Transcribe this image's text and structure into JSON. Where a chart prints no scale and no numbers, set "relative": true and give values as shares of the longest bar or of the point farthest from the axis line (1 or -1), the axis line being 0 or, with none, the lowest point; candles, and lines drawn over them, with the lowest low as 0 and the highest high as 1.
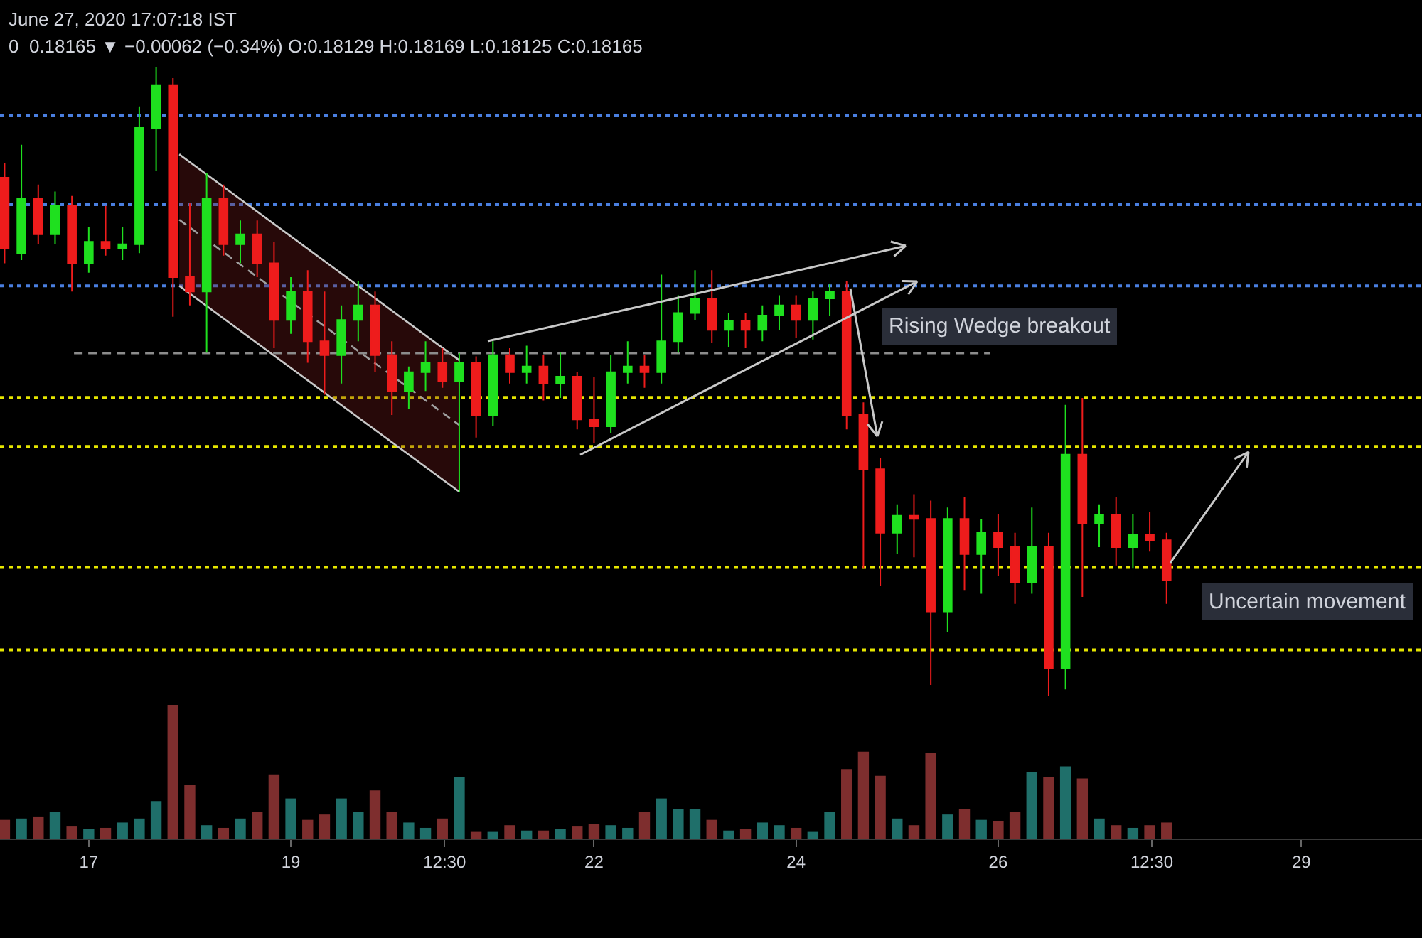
{
  "chart_data": [
    {
      "type": "candlestick",
      "title": "June 27, 2020 17:07:18 IST",
      "subtitle": "0  0.18165 ▼ −0.00062 (−0.34%) O:0.18129 H:0.18169 L:0.18125 C:0.18165",
      "relative": true,
      "tick_labels": false,
      "xlim": [
        "2020-06-16T02:55",
        "2020-06-30T04:40"
      ],
      "series": [
        {
          "type": "line",
          "color": "#a0a0a0",
          "line_style": "dashed",
          "x": [
            "2020-06-17T21:30",
            "2020-06-20T16:00"
          ],
          "values": [
            0.757,
            0.431
          ],
          "lower": [
            0.652,
            0.325
          ],
          "upper": [
            0.861,
            0.534
          ]
        },
        {
          "type": "line",
          "color": "#c8c8c8",
          "x": [
            "2020-06-17T21:30",
            "2020-06-20T16:00"
          ],
          "values": [
            0.861,
            0.534
          ]
        },
        {
          "type": "line",
          "color": "#c8c8c8",
          "x": [
            "2020-06-17T21:30",
            "2020-06-20T16:00"
          ],
          "values": [
            0.652,
            0.325
          ]
        },
        {
          "type": "line",
          "color": "#8c8c8c",
          "line_style": "dashed",
          "x": [
            "2020-06-16T20:30",
            "2020-06-25T22:00"
          ],
          "values": [
            0.545,
            0.545
          ]
        },
        {
          "color": "#1fe01f",
          "x": [
            "2020-06-16T08:00",
            "2020-06-16T16:00",
            "2020-06-17T00:00",
            "2020-06-17T08:00",
            "2020-06-17T12:00",
            "2020-06-17T16:00",
            "2020-06-18T04:00",
            "2020-06-18T12:00",
            "2020-06-19T00:00",
            "2020-06-19T12:00",
            "2020-06-19T16:00",
            "2020-06-20T04:00",
            "2020-06-20T08:00",
            "2020-06-20T16:00",
            "2020-06-21T00:00",
            "2020-06-21T08:00",
            "2020-06-21T16:00",
            "2020-06-22T04:00",
            "2020-06-22T08:00",
            "2020-06-22T16:00",
            "2020-06-22T20:00",
            "2020-06-23T00:00",
            "2020-06-23T08:00",
            "2020-06-23T16:00",
            "2020-06-23T20:00",
            "2020-06-24T04:00",
            "2020-06-24T08:00",
            "2020-06-25T00:00",
            "2020-06-25T12:00",
            "2020-06-25T20:00",
            "2020-06-26T08:00",
            "2020-06-26T16:00",
            "2020-06-27T00:00",
            "2020-06-27T08:00"
          ],
          "ohlc": [
            [
              0.704,
              0.876,
              0.693,
              0.79
            ],
            [
              0.734,
              0.802,
              0.718,
              0.779
            ],
            [
              0.688,
              0.745,
              0.673,
              0.722
            ],
            [
              0.711,
              0.745,
              0.693,
              0.718
            ],
            [
              0.718,
              0.937,
              0.704,
              0.903
            ],
            [
              0.903,
              1.0,
              0.835,
              0.971
            ],
            [
              0.643,
              0.831,
              0.546,
              0.79
            ],
            [
              0.718,
              0.756,
              0.688,
              0.734
            ],
            [
              0.598,
              0.666,
              0.576,
              0.643
            ],
            [
              0.542,
              0.621,
              0.497,
              0.598
            ],
            [
              0.598,
              0.659,
              0.564,
              0.621
            ],
            [
              0.485,
              0.524,
              0.456,
              0.515
            ],
            [
              0.515,
              0.564,
              0.485,
              0.53
            ],
            [
              0.501,
              0.545,
              0.325,
              0.53
            ],
            [
              0.447,
              0.564,
              0.429,
              0.542
            ],
            [
              0.515,
              0.557,
              0.497,
              0.524
            ],
            [
              0.497,
              0.546,
              0.474,
              0.508
            ],
            [
              0.429,
              0.542,
              0.418,
              0.515
            ],
            [
              0.515,
              0.564,
              0.497,
              0.524
            ],
            [
              0.515,
              0.67,
              0.497,
              0.564
            ],
            [
              0.564,
              0.637,
              0.546,
              0.609
            ],
            [
              0.609,
              0.677,
              0.598,
              0.632
            ],
            [
              0.582,
              0.609,
              0.555,
              0.596
            ],
            [
              0.582,
              0.621,
              0.564,
              0.605
            ],
            [
              0.605,
              0.637,
              0.582,
              0.621
            ],
            [
              0.598,
              0.643,
              0.567,
              0.632
            ],
            [
              0.632,
              0.655,
              0.605,
              0.643
            ],
            [
              0.26,
              0.305,
              0.226,
              0.287
            ],
            [
              0.135,
              0.3,
              0.102,
              0.282
            ],
            [
              0.226,
              0.282,
              0.163,
              0.26
            ],
            [
              0.181,
              0.3,
              0.163,
              0.237
            ],
            [
              0.045,
              0.463,
              0.011,
              0.384
            ],
            [
              0.275,
              0.305,
              0.237,
              0.289
            ],
            [
              0.237,
              0.289,
              0.203,
              0.257
            ]
          ]
        },
        {
          "color": "#ee1c1c",
          "x": [
            "2020-06-16T04:00",
            "2020-06-16T12:00",
            "2020-06-16T20:00",
            "2020-06-17T04:00",
            "2020-06-17T20:00",
            "2020-06-18T00:00",
            "2020-06-18T08:00",
            "2020-06-18T16:00",
            "2020-06-18T20:00",
            "2020-06-19T04:00",
            "2020-06-19T08:00",
            "2020-06-19T20:00",
            "2020-06-20T00:00",
            "2020-06-20T12:00",
            "2020-06-20T20:00",
            "2020-06-21T04:00",
            "2020-06-21T12:00",
            "2020-06-21T20:00",
            "2020-06-22T00:00",
            "2020-06-22T12:00",
            "2020-06-23T04:00",
            "2020-06-23T12:00",
            "2020-06-24T00:00",
            "2020-06-24T12:00",
            "2020-06-24T16:00",
            "2020-06-24T20:00",
            "2020-06-25T04:00",
            "2020-06-25T08:00",
            "2020-06-25T16:00",
            "2020-06-26T00:00",
            "2020-06-26T04:00",
            "2020-06-26T12:00",
            "2020-06-26T20:00",
            "2020-06-27T04:00",
            "2020-06-27T12:00",
            "2020-06-27T16:00"
          ],
          "ohlc": [
            [
              0.824,
              0.847,
              0.688,
              0.711
            ],
            [
              0.79,
              0.813,
              0.718,
              0.734
            ],
            [
              0.779,
              0.795,
              0.643,
              0.688
            ],
            [
              0.722,
              0.779,
              0.7,
              0.711
            ],
            [
              0.971,
              0.982,
              0.603,
              0.666
            ],
            [
              0.666,
              0.783,
              0.621,
              0.643
            ],
            [
              0.79,
              0.813,
              0.7,
              0.718
            ],
            [
              0.734,
              0.756,
              0.666,
              0.688
            ],
            [
              0.688,
              0.722,
              0.553,
              0.598
            ],
            [
              0.643,
              0.677,
              0.53,
              0.564
            ],
            [
              0.564,
              0.643,
              0.479,
              0.542
            ],
            [
              0.621,
              0.643,
              0.515,
              0.542
            ],
            [
              0.542,
              0.564,
              0.447,
              0.485
            ],
            [
              0.53,
              0.553,
              0.49,
              0.501
            ],
            [
              0.53,
              0.54,
              0.411,
              0.447
            ],
            [
              0.542,
              0.553,
              0.497,
              0.515
            ],
            [
              0.524,
              0.542,
              0.47,
              0.497
            ],
            [
              0.508,
              0.515,
              0.424,
              0.44
            ],
            [
              0.44,
              0.508,
              0.402,
              0.429
            ],
            [
              0.524,
              0.542,
              0.49,
              0.515
            ],
            [
              0.632,
              0.677,
              0.561,
              0.582
            ],
            [
              0.596,
              0.609,
              0.553,
              0.582
            ],
            [
              0.621,
              0.637,
              0.569,
              0.598
            ],
            [
              0.643,
              0.659,
              0.424,
              0.447
            ],
            [
              0.447,
              0.467,
              0.203,
              0.361
            ],
            [
              0.361,
              0.379,
              0.176,
              0.26
            ],
            [
              0.287,
              0.321,
              0.221,
              0.282
            ],
            [
              0.282,
              0.311,
              0.018,
              0.135
            ],
            [
              0.282,
              0.316,
              0.169,
              0.226
            ],
            [
              0.26,
              0.289,
              0.192,
              0.237
            ],
            [
              0.237,
              0.26,
              0.147,
              0.181
            ],
            [
              0.237,
              0.26,
              0.0,
              0.045
            ],
            [
              0.384,
              0.474,
              0.158,
              0.275
            ],
            [
              0.289,
              0.316,
              0.208,
              0.237
            ],
            [
              0.257,
              0.293,
              0.23,
              0.248
            ],
            [
              0.248,
              0.26,
              0.147,
              0.185
            ]
          ]
        }
      ],
      "ref_lines": [
        {
          "axis": "y",
          "value": 0.923,
          "color": "#4a7fe0",
          "line_style": "dotted"
        },
        {
          "axis": "y",
          "value": 0.781,
          "color": "#4a7fe0",
          "line_style": "dotted"
        },
        {
          "axis": "y",
          "value": 0.652,
          "color": "#4a7fe0",
          "line_style": "dotted"
        },
        {
          "axis": "y",
          "value": 0.475,
          "color": "#e6e600",
          "line_style": "dotted"
        },
        {
          "axis": "y",
          "value": 0.397,
          "color": "#e6e600",
          "line_style": "dotted"
        },
        {
          "axis": "y",
          "value": 0.205,
          "color": "#e6e600",
          "line_style": "dotted"
        },
        {
          "axis": "y",
          "value": 0.074,
          "color": "#e6e600",
          "line_style": "dotted"
        }
      ],
      "annotations": [
        "Rising Wedge breakout",
        "Uncertain movement"
      ]
    },
    {
      "type": "bar",
      "relative": true,
      "tick_labels": "x",
      "xlim": [
        "2020-06-16T02:55",
        "2020-06-30T04:40"
      ],
      "xticks": [
        {
          "value": "2020-06-17",
          "label": "17"
        },
        {
          "value": "2020-06-19",
          "label": "19"
        },
        {
          "value": "2020-06-20T12:30",
          "label": "12:30"
        },
        {
          "value": "2020-06-22",
          "label": "22"
        },
        {
          "value": "2020-06-24",
          "label": "24"
        },
        {
          "value": "2020-06-26",
          "label": "26"
        },
        {
          "value": "2020-06-27T12:30",
          "label": "12:30"
        },
        {
          "value": "2020-06-29",
          "label": "29"
        }
      ],
      "x": [
        "2020-06-16T04:00",
        "2020-06-16T08:00",
        "2020-06-16T12:00",
        "2020-06-16T16:00",
        "2020-06-16T20:00",
        "2020-06-17T00:00",
        "2020-06-17T04:00",
        "2020-06-17T08:00",
        "2020-06-17T12:00",
        "2020-06-17T16:00",
        "2020-06-17T20:00",
        "2020-06-18T00:00",
        "2020-06-18T04:00",
        "2020-06-18T08:00",
        "2020-06-18T12:00",
        "2020-06-18T16:00",
        "2020-06-18T20:00",
        "2020-06-19T00:00",
        "2020-06-19T04:00",
        "2020-06-19T08:00",
        "2020-06-19T12:00",
        "2020-06-19T16:00",
        "2020-06-19T20:00",
        "2020-06-20T00:00",
        "2020-06-20T04:00",
        "2020-06-20T08:00",
        "2020-06-20T12:00",
        "2020-06-20T16:00",
        "2020-06-20T20:00",
        "2020-06-21T00:00",
        "2020-06-21T04:00",
        "2020-06-21T08:00",
        "2020-06-21T12:00",
        "2020-06-21T16:00",
        "2020-06-21T20:00",
        "2020-06-22T00:00",
        "2020-06-22T04:00",
        "2020-06-22T08:00",
        "2020-06-22T12:00",
        "2020-06-22T16:00",
        "2020-06-22T20:00",
        "2020-06-23T00:00",
        "2020-06-23T04:00",
        "2020-06-23T08:00",
        "2020-06-23T12:00",
        "2020-06-23T16:00",
        "2020-06-23T20:00",
        "2020-06-24T00:00",
        "2020-06-24T04:00",
        "2020-06-24T08:00",
        "2020-06-24T12:00",
        "2020-06-24T16:00",
        "2020-06-24T20:00",
        "2020-06-25T00:00",
        "2020-06-25T04:00",
        "2020-06-25T08:00",
        "2020-06-25T12:00",
        "2020-06-25T16:00",
        "2020-06-25T20:00",
        "2020-06-26T00:00",
        "2020-06-26T04:00",
        "2020-06-26T08:00",
        "2020-06-26T12:00",
        "2020-06-26T16:00",
        "2020-06-26T20:00",
        "2020-06-27T00:00",
        "2020-06-27T04:00",
        "2020-06-27T08:00",
        "2020-06-27T12:00",
        "2020-06-27T16:00"
      ],
      "values": [
        0.14,
        0.15,
        0.16,
        0.2,
        0.09,
        0.07,
        0.08,
        0.12,
        0.15,
        0.28,
        1.0,
        0.4,
        0.1,
        0.08,
        0.15,
        0.2,
        0.48,
        0.3,
        0.14,
        0.18,
        0.3,
        0.2,
        0.36,
        0.2,
        0.12,
        0.08,
        0.15,
        0.46,
        0.05,
        0.05,
        0.1,
        0.06,
        0.06,
        0.07,
        0.09,
        0.11,
        0.1,
        0.08,
        0.2,
        0.3,
        0.22,
        0.22,
        0.14,
        0.06,
        0.07,
        0.12,
        0.1,
        0.08,
        0.05,
        0.2,
        0.52,
        0.65,
        0.47,
        0.15,
        0.1,
        0.64,
        0.18,
        0.22,
        0.14,
        0.13,
        0.2,
        0.5,
        0.46,
        0.54,
        0.45,
        0.15,
        0.1,
        0.08,
        0.1,
        0.12
      ],
      "colors": [
        "#7e2e2e",
        "#1f6f6a",
        "#7e2e2e",
        "#1f6f6a",
        "#7e2e2e",
        "#1f6f6a",
        "#7e2e2e",
        "#1f6f6a",
        "#1f6f6a",
        "#1f6f6a",
        "#7e2e2e",
        "#7e2e2e",
        "#1f6f6a",
        "#7e2e2e",
        "#1f6f6a",
        "#7e2e2e",
        "#7e2e2e",
        "#1f6f6a",
        "#7e2e2e",
        "#7e2e2e",
        "#1f6f6a",
        "#1f6f6a",
        "#7e2e2e",
        "#7e2e2e",
        "#1f6f6a",
        "#1f6f6a",
        "#7e2e2e",
        "#1f6f6a",
        "#7e2e2e",
        "#1f6f6a",
        "#7e2e2e",
        "#1f6f6a",
        "#7e2e2e",
        "#1f6f6a",
        "#7e2e2e",
        "#7e2e2e",
        "#1f6f6a",
        "#1f6f6a",
        "#7e2e2e",
        "#1f6f6a",
        "#1f6f6a",
        "#1f6f6a",
        "#7e2e2e",
        "#1f6f6a",
        "#7e2e2e",
        "#1f6f6a",
        "#1f6f6a",
        "#7e2e2e",
        "#1f6f6a",
        "#1f6f6a",
        "#7e2e2e",
        "#7e2e2e",
        "#7e2e2e",
        "#1f6f6a",
        "#7e2e2e",
        "#7e2e2e",
        "#1f6f6a",
        "#7e2e2e",
        "#1f6f6a",
        "#7e2e2e",
        "#7e2e2e",
        "#1f6f6a",
        "#7e2e2e",
        "#1f6f6a",
        "#7e2e2e",
        "#1f6f6a",
        "#7e2e2e",
        "#1f6f6a",
        "#7e2e2e",
        "#7e2e2e"
      ]
    }
  ]
}
